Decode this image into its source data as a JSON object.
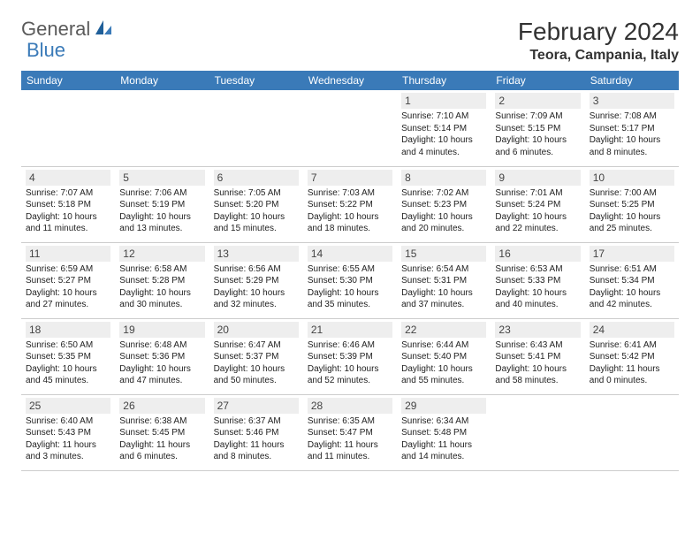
{
  "brand": {
    "part1": "General",
    "part2": "Blue"
  },
  "title": "February 2024",
  "location": "Teora, Campania, Italy",
  "colors": {
    "header_bg": "#3a7ab8",
    "header_text": "#ffffff",
    "daynum_bg": "#eeeeee",
    "border": "#cccccc",
    "brand_gray": "#5a5a5a",
    "brand_blue": "#3a7ab8"
  },
  "dayHeaders": [
    "Sunday",
    "Monday",
    "Tuesday",
    "Wednesday",
    "Thursday",
    "Friday",
    "Saturday"
  ],
  "weeks": [
    [
      null,
      null,
      null,
      null,
      {
        "n": "1",
        "sr": "7:10 AM",
        "ss": "5:14 PM",
        "dl": "10 hours and 4 minutes."
      },
      {
        "n": "2",
        "sr": "7:09 AM",
        "ss": "5:15 PM",
        "dl": "10 hours and 6 minutes."
      },
      {
        "n": "3",
        "sr": "7:08 AM",
        "ss": "5:17 PM",
        "dl": "10 hours and 8 minutes."
      }
    ],
    [
      {
        "n": "4",
        "sr": "7:07 AM",
        "ss": "5:18 PM",
        "dl": "10 hours and 11 minutes."
      },
      {
        "n": "5",
        "sr": "7:06 AM",
        "ss": "5:19 PM",
        "dl": "10 hours and 13 minutes."
      },
      {
        "n": "6",
        "sr": "7:05 AM",
        "ss": "5:20 PM",
        "dl": "10 hours and 15 minutes."
      },
      {
        "n": "7",
        "sr": "7:03 AM",
        "ss": "5:22 PM",
        "dl": "10 hours and 18 minutes."
      },
      {
        "n": "8",
        "sr": "7:02 AM",
        "ss": "5:23 PM",
        "dl": "10 hours and 20 minutes."
      },
      {
        "n": "9",
        "sr": "7:01 AM",
        "ss": "5:24 PM",
        "dl": "10 hours and 22 minutes."
      },
      {
        "n": "10",
        "sr": "7:00 AM",
        "ss": "5:25 PM",
        "dl": "10 hours and 25 minutes."
      }
    ],
    [
      {
        "n": "11",
        "sr": "6:59 AM",
        "ss": "5:27 PM",
        "dl": "10 hours and 27 minutes."
      },
      {
        "n": "12",
        "sr": "6:58 AM",
        "ss": "5:28 PM",
        "dl": "10 hours and 30 minutes."
      },
      {
        "n": "13",
        "sr": "6:56 AM",
        "ss": "5:29 PM",
        "dl": "10 hours and 32 minutes."
      },
      {
        "n": "14",
        "sr": "6:55 AM",
        "ss": "5:30 PM",
        "dl": "10 hours and 35 minutes."
      },
      {
        "n": "15",
        "sr": "6:54 AM",
        "ss": "5:31 PM",
        "dl": "10 hours and 37 minutes."
      },
      {
        "n": "16",
        "sr": "6:53 AM",
        "ss": "5:33 PM",
        "dl": "10 hours and 40 minutes."
      },
      {
        "n": "17",
        "sr": "6:51 AM",
        "ss": "5:34 PM",
        "dl": "10 hours and 42 minutes."
      }
    ],
    [
      {
        "n": "18",
        "sr": "6:50 AM",
        "ss": "5:35 PM",
        "dl": "10 hours and 45 minutes."
      },
      {
        "n": "19",
        "sr": "6:48 AM",
        "ss": "5:36 PM",
        "dl": "10 hours and 47 minutes."
      },
      {
        "n": "20",
        "sr": "6:47 AM",
        "ss": "5:37 PM",
        "dl": "10 hours and 50 minutes."
      },
      {
        "n": "21",
        "sr": "6:46 AM",
        "ss": "5:39 PM",
        "dl": "10 hours and 52 minutes."
      },
      {
        "n": "22",
        "sr": "6:44 AM",
        "ss": "5:40 PM",
        "dl": "10 hours and 55 minutes."
      },
      {
        "n": "23",
        "sr": "6:43 AM",
        "ss": "5:41 PM",
        "dl": "10 hours and 58 minutes."
      },
      {
        "n": "24",
        "sr": "6:41 AM",
        "ss": "5:42 PM",
        "dl": "11 hours and 0 minutes."
      }
    ],
    [
      {
        "n": "25",
        "sr": "6:40 AM",
        "ss": "5:43 PM",
        "dl": "11 hours and 3 minutes."
      },
      {
        "n": "26",
        "sr": "6:38 AM",
        "ss": "5:45 PM",
        "dl": "11 hours and 6 minutes."
      },
      {
        "n": "27",
        "sr": "6:37 AM",
        "ss": "5:46 PM",
        "dl": "11 hours and 8 minutes."
      },
      {
        "n": "28",
        "sr": "6:35 AM",
        "ss": "5:47 PM",
        "dl": "11 hours and 11 minutes."
      },
      {
        "n": "29",
        "sr": "6:34 AM",
        "ss": "5:48 PM",
        "dl": "11 hours and 14 minutes."
      },
      null,
      null
    ]
  ],
  "labels": {
    "sunrise": "Sunrise:",
    "sunset": "Sunset:",
    "daylight": "Daylight:"
  }
}
